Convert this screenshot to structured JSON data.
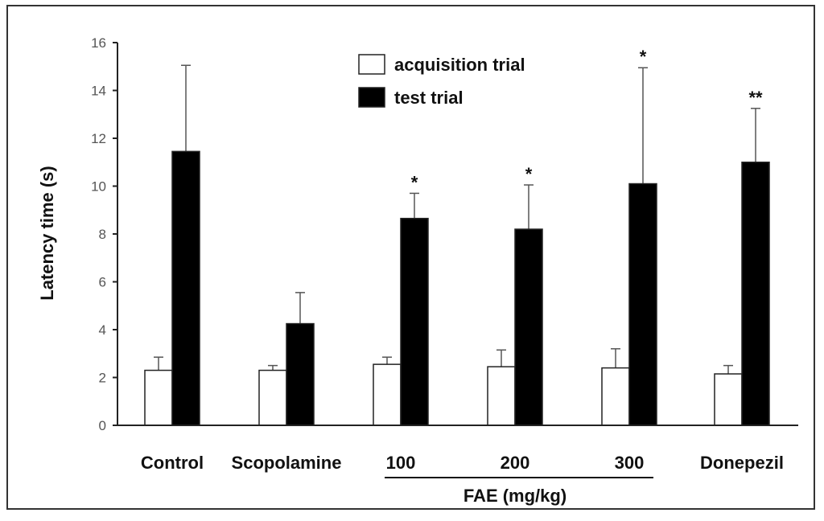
{
  "chart_data": {
    "type": "bar",
    "title": "",
    "ylabel": "Latency time (s)",
    "ylim": [
      0,
      16
    ],
    "yticks": [
      0,
      2,
      4,
      6,
      8,
      10,
      12,
      14,
      16
    ],
    "grid": false,
    "legend_position": "top-center",
    "categories": [
      "Control",
      "Scopolamine",
      "100",
      "200",
      "300",
      "Donepezil"
    ],
    "group_label": {
      "text": "FAE (mg/kg)",
      "categories": [
        "100",
        "200",
        "300"
      ]
    },
    "series": [
      {
        "name": "acquisition trial",
        "color": "#ffffff",
        "values": [
          2.3,
          2.3,
          2.55,
          2.45,
          2.4,
          2.15
        ],
        "errors": [
          0.55,
          0.2,
          0.3,
          0.7,
          0.8,
          0.35
        ]
      },
      {
        "name": "test trial",
        "color": "#000000",
        "values": [
          11.45,
          4.25,
          8.65,
          8.2,
          10.1,
          11.0
        ],
        "errors": [
          3.6,
          1.3,
          1.05,
          1.85,
          4.85,
          2.25
        ]
      }
    ],
    "annotations": [
      "",
      "",
      "*",
      "*",
      "*",
      "**"
    ]
  }
}
